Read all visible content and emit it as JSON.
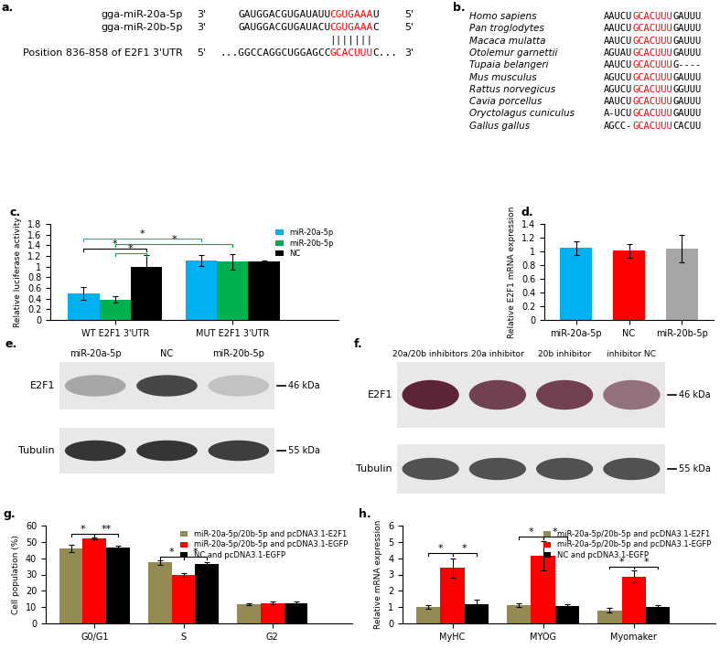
{
  "panels": {
    "a": {
      "label": "a.",
      "color": "#ff0000",
      "rows": [
        {
          "name": "gga-miR-20a-5p",
          "start": "3'",
          "prefix": "GAUGGACGUGAUAUU",
          "seed": "CGUGAAA",
          "suffix": "U",
          "end": "5'"
        },
        {
          "name": "gga-miR-20b-5p",
          "start": "3'",
          "prefix": "GAUGGACGUGAUACU",
          "seed": "CGUGAAA",
          "suffix": "C",
          "end": "5'"
        },
        {
          "name": "Position 836-858 of E2F1 3'UTR",
          "start": "5'",
          "prefix": "...GGCCAGGCUGGAGCC",
          "seed": "GCACUUU",
          "suffix": "C...",
          "end": "3'"
        }
      ],
      "pairing": "|||||||"
    },
    "b": {
      "label": "b.",
      "color": "#ff0000",
      "rows": [
        {
          "species": "Homo sapiens",
          "prefix": "AAUCU",
          "seed": "GCACUUU",
          "suffix": "GAUUU"
        },
        {
          "species": "Pan troglodytes",
          "prefix": "AAUCU",
          "seed": "GCACUUU",
          "suffix": "GAUUU"
        },
        {
          "species": "Macaca mulatta",
          "prefix": "AAUCU",
          "seed": "GCACUUU",
          "suffix": "GAUUU"
        },
        {
          "species": "Otolemur garnettii",
          "prefix": "AGUAU",
          "seed": "GCACUUU",
          "suffix": "GAUUU"
        },
        {
          "species": "Tupaia belangeri",
          "prefix": "AAUCU",
          "seed": "GCACUUU",
          "suffix": "G----"
        },
        {
          "species": "Mus musculus",
          "prefix": "AGUCU",
          "seed": "GCACUUU",
          "suffix": "GAUUU"
        },
        {
          "species": "Rattus norvegicus",
          "prefix": "AGUCU",
          "seed": "GCACUUU",
          "suffix": "GGUUU"
        },
        {
          "species": "Cavia porcellus",
          "prefix": "AAUCU",
          "seed": "GCACUUU",
          "suffix": "GAUUU"
        },
        {
          "species": "Oryctolagus cuniculus",
          "prefix": "A-UCU",
          "seed": "GCACUUU",
          "suffix": "GAUUU"
        },
        {
          "species": "Gallus gallus",
          "prefix": "AGCC-",
          "seed": "GCACUUU",
          "suffix": "CACUU"
        }
      ]
    },
    "e": {
      "label": "e.",
      "lanes": [
        "miR-20a-5p",
        "NC",
        "miR-20b-5p"
      ],
      "rows": [
        {
          "name": "E2F1",
          "marker": "46 kDa",
          "color": "#2b2b2b",
          "intensity": [
            0.35,
            0.85,
            0.2
          ]
        },
        {
          "name": "Tubulin",
          "marker": "55 kDa",
          "color": "#2b2b2b",
          "intensity": [
            0.95,
            0.95,
            0.9
          ]
        }
      ]
    },
    "f": {
      "label": "f.",
      "lanes": [
        "20a/20b inhibitors",
        "20a inhibitor",
        "20b inhibitor",
        "inhibitor NC"
      ],
      "rows": [
        {
          "name": "E2F1",
          "marker": "46 kDa",
          "color": "#5c2436",
          "intensity": [
            1.0,
            0.85,
            0.85,
            0.6
          ]
        },
        {
          "name": "Tubulin",
          "marker": "55 kDa",
          "color": "#2b2b2b",
          "intensity": [
            0.8,
            0.8,
            0.8,
            0.8
          ]
        }
      ]
    }
  },
  "chart_data": [
    {
      "type": "bar",
      "title": "c.",
      "y_label": "Relative luciferase activity",
      "categories": [
        "WT E2F1 3'UTR",
        "MUT E2F1 3'UTR"
      ],
      "series": [
        {
          "name": "miR-20a-5p",
          "color": "#00b0f0",
          "values": [
            0.5,
            1.11
          ],
          "error": [
            0.12,
            0.1
          ]
        },
        {
          "name": "miR-20b-5p",
          "color": "#00b050",
          "values": [
            0.38,
            1.09
          ],
          "error": [
            0.06,
            0.15
          ]
        },
        {
          "name": "NC",
          "color": "#000000",
          "values": [
            1.0,
            1.09
          ],
          "error": [
            0.22,
            0.02
          ]
        }
      ],
      "ylim": [
        0,
        1.8
      ],
      "yticks": [
        0,
        0.2,
        0.4,
        0.6,
        0.8,
        1,
        1.2,
        1.4,
        1.6,
        1.8
      ],
      "legend": "upper right",
      "significance": [
        {
          "a": [
            0,
            0
          ],
          "b": [
            1,
            0
          ],
          "y": 1.52,
          "label": "*",
          "color": "#00b0f0"
        },
        {
          "a": [
            0,
            0
          ],
          "b": [
            0,
            2
          ],
          "y": 1.33,
          "label": "*",
          "color": "#000000"
        },
        {
          "a": [
            0,
            1
          ],
          "b": [
            0,
            2
          ],
          "y": 1.25,
          "label": "*",
          "color": "#00b050"
        },
        {
          "a": [
            0,
            1
          ],
          "b": [
            1,
            1
          ],
          "y": 1.42,
          "label": "*",
          "color": "#00b050"
        }
      ]
    },
    {
      "type": "bar",
      "title": "d.",
      "y_label": "Relative E2F1 mRNA expression",
      "categories": [
        "miR-20a-5p",
        "NC",
        "miR-20b-5p"
      ],
      "values": [
        1.05,
        1.01,
        1.04
      ],
      "error": [
        0.1,
        0.1,
        0.2
      ],
      "colors": [
        "#00b0f0",
        "#ff0000",
        "#a6a6a6"
      ],
      "ylim": [
        0,
        1.4
      ],
      "yticks": [
        0,
        0.2,
        0.4,
        0.6,
        0.8,
        1,
        1.2,
        1.4
      ]
    },
    {
      "type": "bar",
      "title": "g.",
      "y_label": "Cell population (%)",
      "categories": [
        "G0/G1",
        "S",
        "G2"
      ],
      "series": [
        {
          "name": "miR-20a-5p/20b-5p and pcDNA3.1-E2F1",
          "color": "#948a54",
          "values": [
            46,
            37.3,
            11.8
          ],
          "error": [
            2,
            1.3,
            0.5
          ]
        },
        {
          "name": "miR-20a-5p/20b-5p and pcDNA3.1-EGFP",
          "color": "#ff0000",
          "values": [
            52.3,
            29.8,
            12.6
          ],
          "error": [
            0.5,
            1,
            1
          ]
        },
        {
          "name": "NC and pcDNA3.1-EGFP",
          "color": "#000000",
          "values": [
            46.5,
            36.2,
            12.3
          ],
          "error": [
            1,
            1.5,
            1.2
          ]
        }
      ],
      "ylim": [
        0,
        60
      ],
      "yticks": [
        0,
        10,
        20,
        30,
        40,
        50,
        60
      ],
      "legend": "upper right",
      "significance": [
        {
          "a": [
            0,
            0
          ],
          "b": [
            0,
            1
          ],
          "y": 55,
          "label": "*",
          "color": "#000000"
        },
        {
          "a": [
            0,
            1
          ],
          "b": [
            0,
            2
          ],
          "y": 55,
          "label": "**",
          "color": "#000000"
        },
        {
          "a": [
            1,
            0
          ],
          "b": [
            1,
            1
          ],
          "y": 41,
          "label": "*",
          "color": "#000000"
        },
        {
          "a": [
            1,
            1
          ],
          "b": [
            1,
            2
          ],
          "y": 41,
          "label": "*",
          "color": "#000000"
        }
      ]
    },
    {
      "type": "bar",
      "title": "h.",
      "y_label": "Relative mRNA expression",
      "categories": [
        "MyHC",
        "MYOG",
        "Myomaker"
      ],
      "series": [
        {
          "name": "miR-20a-5p/20b-5p and pcDNA3.1-E2F1",
          "color": "#948a54",
          "values": [
            1.0,
            1.12,
            0.8
          ],
          "error": [
            0.1,
            0.1,
            0.15
          ]
        },
        {
          "name": "miR-20a-5p/20b-5p and pcDNA3.1-EGFP",
          "color": "#ff0000",
          "values": [
            3.4,
            4.15,
            2.88
          ],
          "error": [
            0.6,
            0.9,
            0.35
          ]
        },
        {
          "name": "NC and pcDNA3.1-EGFP",
          "color": "#000000",
          "values": [
            1.18,
            1.05,
            1.02
          ],
          "error": [
            0.3,
            0.15,
            0.08
          ]
        }
      ],
      "ylim": [
        0,
        6
      ],
      "yticks": [
        0,
        1,
        2,
        3,
        4,
        5,
        6
      ],
      "legend": "upper right",
      "significance": [
        {
          "a": [
            0,
            0
          ],
          "b": [
            0,
            1
          ],
          "y": 4.3,
          "label": "*",
          "color": "#000000"
        },
        {
          "a": [
            0,
            1
          ],
          "b": [
            0,
            2
          ],
          "y": 4.3,
          "label": "*",
          "color": "#000000"
        },
        {
          "a": [
            1,
            0
          ],
          "b": [
            1,
            1
          ],
          "y": 5.3,
          "label": "*",
          "color": "#000000"
        },
        {
          "a": [
            1,
            1
          ],
          "b": [
            1,
            2
          ],
          "y": 5.3,
          "label": "*",
          "color": "#000000"
        },
        {
          "a": [
            2,
            0
          ],
          "b": [
            2,
            1
          ],
          "y": 3.5,
          "label": "*",
          "color": "#000000"
        },
        {
          "a": [
            2,
            1
          ],
          "b": [
            2,
            2
          ],
          "y": 3.5,
          "label": "*",
          "color": "#000000"
        }
      ]
    }
  ]
}
